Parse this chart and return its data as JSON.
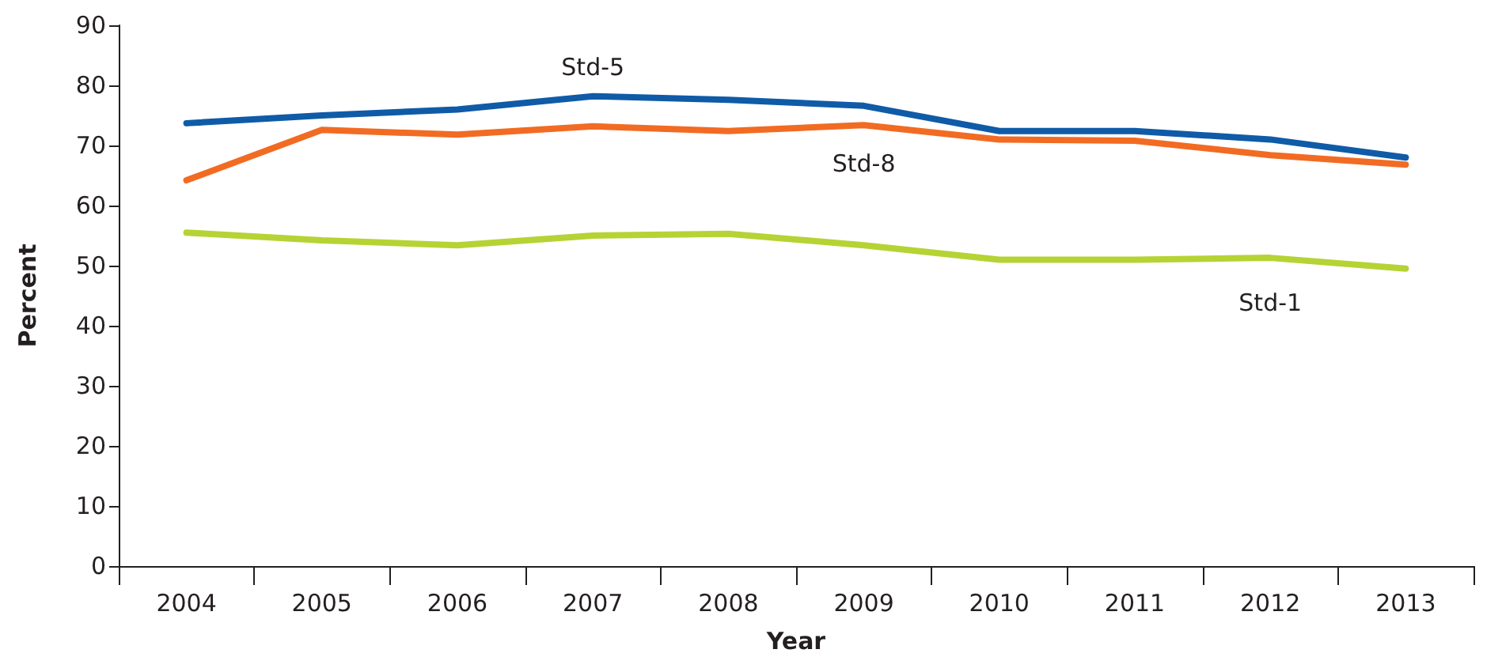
{
  "chart_data": {
    "type": "line",
    "xlabel": "Year",
    "ylabel": "Percent",
    "categories": [
      "2004",
      "2005",
      "2006",
      "2007",
      "2008",
      "2009",
      "2010",
      "2011",
      "2012",
      "2013"
    ],
    "series": [
      {
        "name": "Std-5",
        "color": "#0f5ba7",
        "values": [
          73.7,
          75,
          76,
          78.2,
          77.6,
          76.6,
          72.4,
          72.4,
          71,
          68
        ]
      },
      {
        "name": "Std-8",
        "color": "#f26b23",
        "values": [
          64.2,
          72.6,
          71.8,
          73.2,
          72.4,
          73.4,
          71,
          70.8,
          68.4,
          66.8
        ]
      },
      {
        "name": "Std-1",
        "color": "#b5d334",
        "values": [
          55.5,
          54.2,
          53.4,
          55,
          55.3,
          53.4,
          51,
          51,
          51.3,
          49.5
        ]
      }
    ],
    "ylim": [
      0,
      90
    ],
    "yticks": [
      0,
      10,
      20,
      30,
      40,
      50,
      60,
      70,
      80,
      90
    ],
    "grid": false,
    "legend": false,
    "marker": "none",
    "line_style": "solid"
  }
}
